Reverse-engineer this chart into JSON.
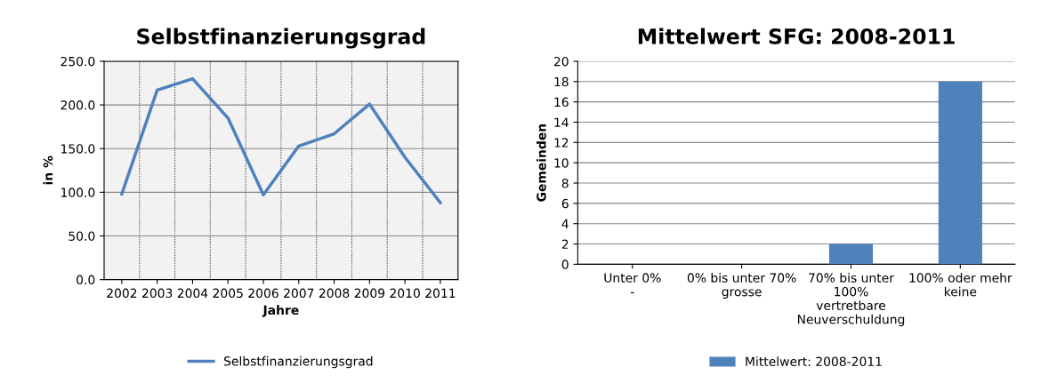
{
  "chart_data": [
    {
      "type": "line",
      "title": "Selbstfinanzierungsgrad",
      "xlabel": "Jahre",
      "ylabel": "in %",
      "categories": [
        "2002",
        "2003",
        "2004",
        "2005",
        "2006",
        "2007",
        "2008",
        "2009",
        "2010",
        "2011"
      ],
      "series": [
        {
          "name": "Selbstfinanzierungsgrad",
          "color": "#4f81bd",
          "values": [
            98,
            217,
            230,
            185,
            97,
            153,
            167,
            201,
            140,
            88
          ]
        }
      ],
      "ylim": [
        0,
        250
      ],
      "yticks": [
        {
          "value": 0,
          "label": "0.0"
        },
        {
          "value": 50,
          "label": "50.0"
        },
        {
          "value": 100,
          "label": "100.0"
        },
        {
          "value": 150,
          "label": "150.0"
        },
        {
          "value": 200,
          "label": "200.0"
        },
        {
          "value": 250,
          "label": "250.0"
        }
      ],
      "grid": true,
      "legend": "bottom"
    },
    {
      "type": "bar",
      "title": "Mittelwert SFG: 2008-2011",
      "ylabel": "Gemeinden",
      "categories": [
        "Unter 0%\n-",
        "0% bis unter 70%\ngrosse",
        "70% bis unter\n100%\nvertretbare\nNeuverschuldung",
        "100% oder mehr\nkeine"
      ],
      "series": [
        {
          "name": "Mittelwert: 2008-2011",
          "color": "#4f81bd",
          "values": [
            0,
            0,
            2,
            18
          ]
        }
      ],
      "ylim": [
        0,
        20
      ],
      "yticks": [
        0,
        2,
        4,
        6,
        8,
        10,
        12,
        14,
        16,
        18,
        20
      ],
      "grid": "y",
      "legend": "bottom"
    }
  ]
}
